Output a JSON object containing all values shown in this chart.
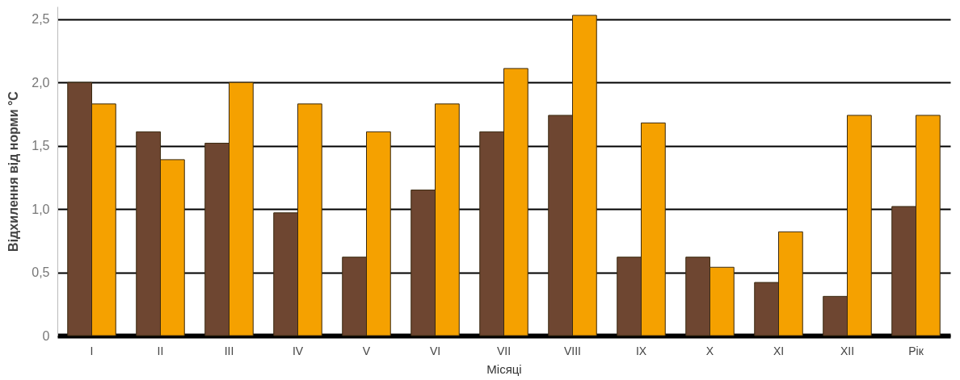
{
  "chart_data": {
    "type": "bar",
    "xlabel": "Місяці",
    "ylabel": "Відхилення від норми °C",
    "categories": [
      "I",
      "II",
      "III",
      "IV",
      "V",
      "VI",
      "VII",
      "VIII",
      "IX",
      "X",
      "XI",
      "XII",
      "Рік"
    ],
    "series": [
      {
        "color": "#6e4631",
        "values": [
          2.0,
          1.61,
          1.52,
          0.97,
          0.62,
          1.15,
          1.61,
          1.74,
          0.62,
          0.62,
          0.42,
          0.31,
          1.02
        ]
      },
      {
        "color": "#f5a100",
        "values": [
          1.83,
          1.39,
          2.0,
          1.83,
          1.61,
          1.83,
          2.11,
          2.53,
          1.68,
          0.54,
          0.82,
          1.74,
          1.74
        ]
      }
    ],
    "ylim": [
      0,
      2.6
    ],
    "yticks": [
      {
        "value": 0,
        "label": "0"
      },
      {
        "value": 0.5,
        "label": "0,5"
      },
      {
        "value": 1,
        "label": "1,0"
      },
      {
        "value": 1.5,
        "label": "1,5"
      },
      {
        "value": 2,
        "label": "2,0"
      },
      {
        "value": 2.5,
        "label": "2,5"
      }
    ],
    "grid": "y"
  }
}
